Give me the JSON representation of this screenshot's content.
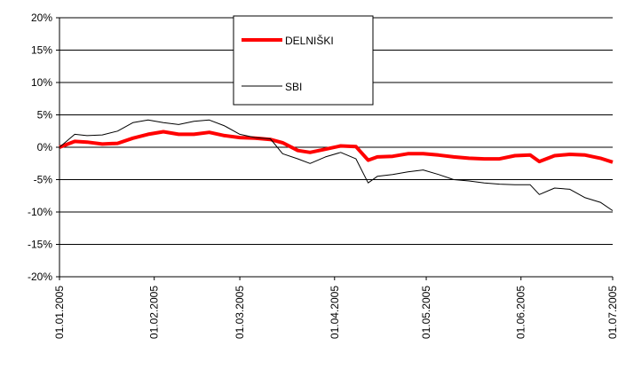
{
  "chart_data": {
    "type": "line",
    "x": [
      "2005-01-01",
      "2005-01-06",
      "2005-01-10",
      "2005-01-15",
      "2005-01-20",
      "2005-01-25",
      "2005-01-30",
      "2005-02-04",
      "2005-02-09",
      "2005-02-14",
      "2005-02-19",
      "2005-02-24",
      "2005-03-01",
      "2005-03-06",
      "2005-03-11",
      "2005-03-15",
      "2005-03-20",
      "2005-03-24",
      "2005-03-29",
      "2005-04-03",
      "2005-04-08",
      "2005-04-12",
      "2005-04-15",
      "2005-04-20",
      "2005-04-25",
      "2005-04-30",
      "2005-05-05",
      "2005-05-10",
      "2005-05-15",
      "2005-05-20",
      "2005-05-25",
      "2005-05-30",
      "2005-06-04",
      "2005-06-07",
      "2005-06-12",
      "2005-06-17",
      "2005-06-22",
      "2005-06-27",
      "2005-07-01"
    ],
    "series": [
      {
        "name": "DELNIŠKI",
        "color": "#ff0000",
        "values": [
          0,
          0.9,
          0.8,
          0.5,
          0.6,
          1.4,
          2.0,
          2.4,
          2.0,
          2.0,
          2.3,
          1.8,
          1.5,
          1.4,
          1.2,
          0.7,
          -0.5,
          -0.8,
          -0.3,
          0.2,
          0.1,
          -2.0,
          -1.5,
          -1.4,
          -1.0,
          -1.0,
          -1.2,
          -1.5,
          -1.7,
          -1.8,
          -1.8,
          -1.3,
          -1.2,
          -2.2,
          -1.3,
          -1.1,
          -1.2,
          -1.7,
          -2.3
        ]
      },
      {
        "name": "SBI",
        "color": "#000000",
        "values": [
          0,
          2.0,
          1.8,
          1.9,
          2.5,
          3.8,
          4.2,
          3.8,
          3.5,
          4.0,
          4.2,
          3.3,
          2.0,
          1.5,
          1.3,
          -1.0,
          -1.8,
          -2.5,
          -1.5,
          -0.8,
          -1.8,
          -5.5,
          -4.5,
          -4.2,
          -3.8,
          -3.5,
          -4.2,
          -5.0,
          -5.2,
          -5.5,
          -5.7,
          -5.8,
          -5.8,
          -7.3,
          -6.3,
          -6.5,
          -7.8,
          -8.5,
          -9.8
        ]
      }
    ],
    "xlim": [
      "2005-01-01",
      "2005-07-01"
    ],
    "xticks": [
      {
        "value": "2005-01-01",
        "label": "01.01.2005"
      },
      {
        "value": "2005-02-01",
        "label": "01.02.2005"
      },
      {
        "value": "2005-03-01",
        "label": "01.03.2005"
      },
      {
        "value": "2005-04-01",
        "label": "01.04.2005"
      },
      {
        "value": "2005-05-01",
        "label": "01.05.2005"
      },
      {
        "value": "2005-06-01",
        "label": "01.06.2005"
      },
      {
        "value": "2005-07-01",
        "label": "01.07.2005"
      }
    ],
    "ylim": [
      -20,
      20
    ],
    "yticks": [
      {
        "value": -20,
        "label": "-20%"
      },
      {
        "value": -15,
        "label": "-15%"
      },
      {
        "value": -10,
        "label": "-10%"
      },
      {
        "value": -5,
        "label": "-5%"
      },
      {
        "value": 0,
        "label": "0%"
      },
      {
        "value": 5,
        "label": "5%"
      },
      {
        "value": 10,
        "label": "10%"
      },
      {
        "value": 15,
        "label": "15%"
      },
      {
        "value": 20,
        "label": "20%"
      }
    ],
    "grid": true
  }
}
